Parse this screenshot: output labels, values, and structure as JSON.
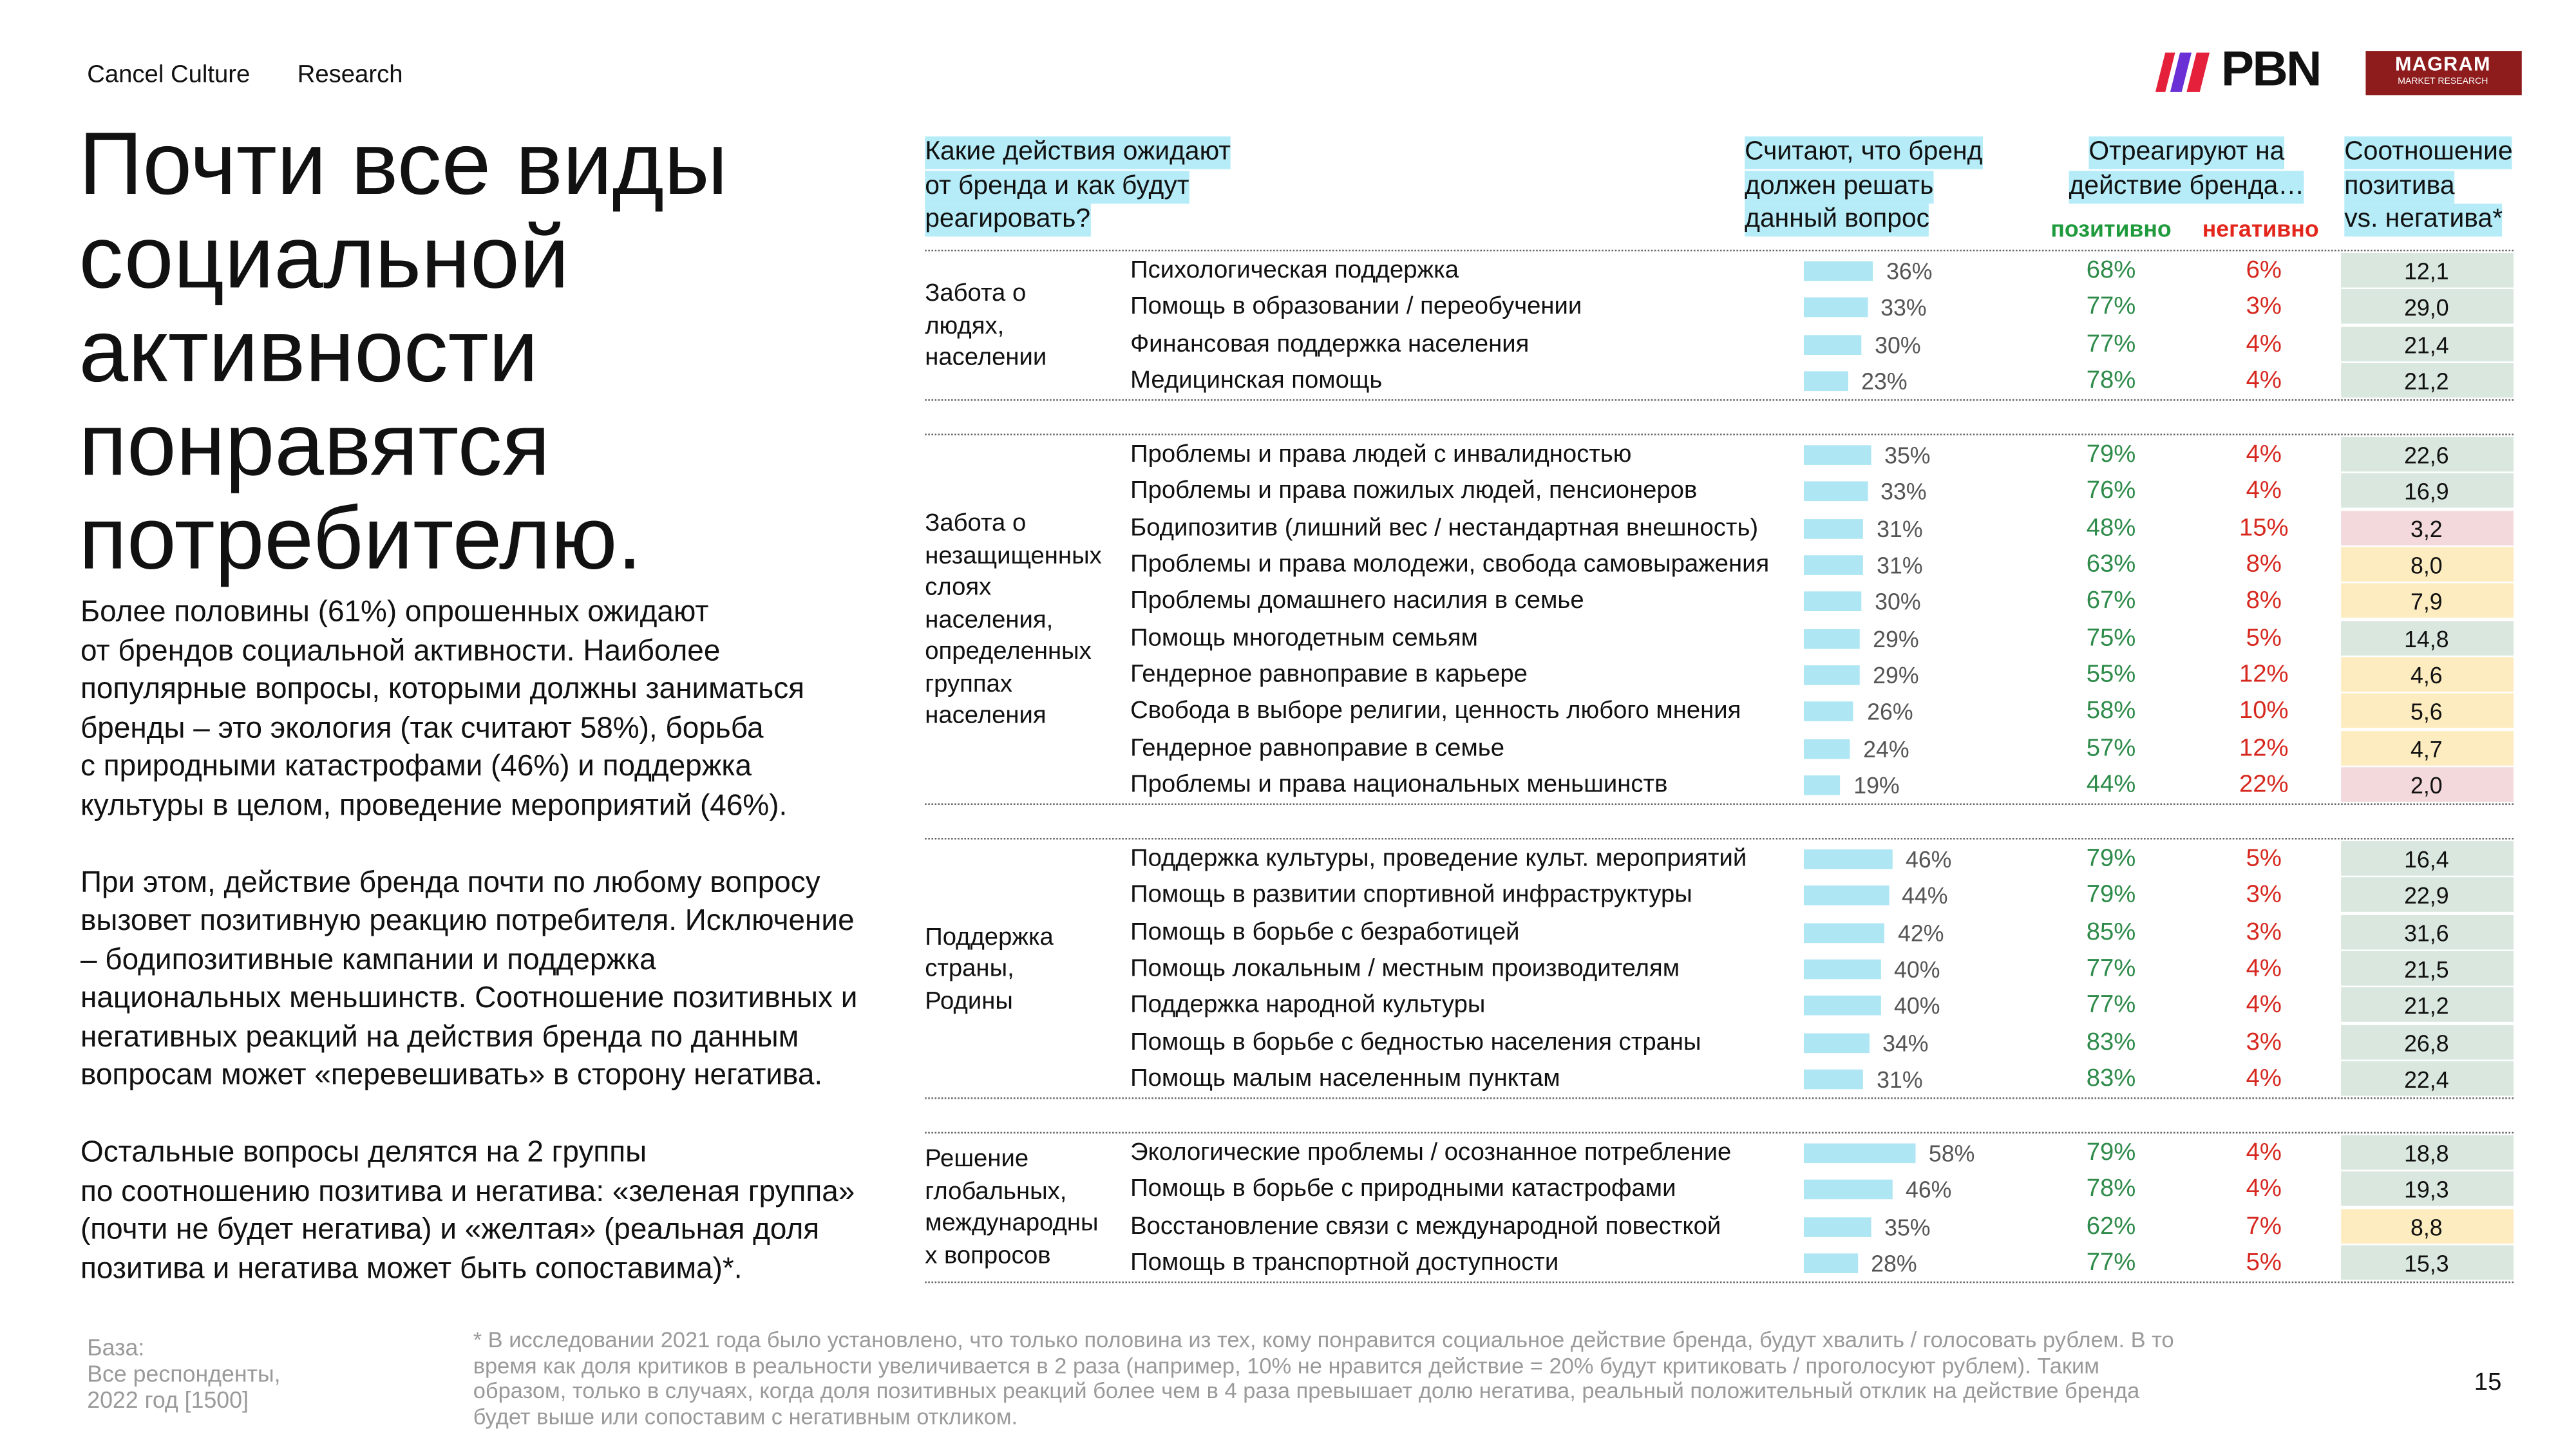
{
  "header": {
    "tags": [
      "Cancel Culture",
      "Research"
    ],
    "logo_pbn": "PBN",
    "logo_magram": "MAGRAM",
    "logo_magram_sub": "MARKET RESEARCH"
  },
  "title": [
    "Почти все виды",
    "социальной",
    "активности",
    "понравятся",
    "потребителю."
  ],
  "paragraphs": [
    [
      "Более половины (61%) опрошенных ожидают",
      "от брендов социальной активности. Наиболее",
      "популярные вопросы, которыми должны заниматься",
      "бренды – это экология (так считают 58%), борьба",
      "с природными катастрофами (46%) и поддержка",
      "культуры в целом, проведение мероприятий (46%)."
    ],
    [
      "При этом, действие бренда почти по любому вопросу",
      "вызовет позитивную реакцию потребителя. Исключение",
      "– бодипозитивные кампании и поддержка",
      "национальных меньшинств. Соотношение позитивных и",
      "негативных реакций на действия бренда по данным",
      "вопросам может «перевешивать» в сторону негатива."
    ],
    [
      "Остальные вопросы делятся на 2 группы",
      "по соотношению позитива и негатива: «зеленая группа»",
      "(почти не будет негатива) и «желтая» (реальная доля",
      "позитива и негатива может быть сопоставима)*."
    ]
  ],
  "table": {
    "headers": {
      "question": [
        "Какие действия ожидают",
        "от бренда и как будут",
        "реагировать?"
      ],
      "should": [
        "Считают, что бренд",
        "должен решать",
        "данный вопрос"
      ],
      "react": [
        "Отреагируют на",
        "действие бренда…"
      ],
      "positive": "позитивно",
      "negative": "негативно",
      "ratio": [
        "Соотношение",
        "позитива",
        "vs. негатива*"
      ]
    },
    "groups": [
      {
        "label": [
          "Забота о",
          "людях,",
          "населении"
        ],
        "rows": [
          {
            "issue": "Психологическая поддержка",
            "share": {
              "value": 36,
              "label": "36%"
            },
            "positive": "68%",
            "negative": "6%",
            "ratio": "12,1",
            "ratio_color": "#d9e7de"
          },
          {
            "issue": "Помощь в образовании / переобучении",
            "share": {
              "value": 33,
              "label": "33%"
            },
            "positive": "77%",
            "negative": "3%",
            "ratio": "29,0",
            "ratio_color": "#d9e7de"
          },
          {
            "issue": "Финансовая поддержка населения",
            "share": {
              "value": 30,
              "label": "30%"
            },
            "positive": "77%",
            "negative": "4%",
            "ratio": "21,4",
            "ratio_color": "#d9e7de"
          },
          {
            "issue": "Медицинская помощь",
            "share": {
              "value": 23,
              "label": "23%"
            },
            "positive": "78%",
            "negative": "4%",
            "ratio": "21,2",
            "ratio_color": "#d9e7de"
          }
        ]
      },
      {
        "label": [
          "Забота о",
          "незащищенных",
          "слоях",
          "населения,",
          "определенных",
          "группах",
          "населения"
        ],
        "rows": [
          {
            "issue": "Проблемы и права людей с инвалидностью",
            "share": {
              "value": 35,
              "label": "35%"
            },
            "positive": "79%",
            "negative": "4%",
            "ratio": "22,6",
            "ratio_color": "#d9e7de"
          },
          {
            "issue": "Проблемы и права пожилых людей, пенсионеров",
            "share": {
              "value": 33,
              "label": "33%"
            },
            "positive": "76%",
            "negative": "4%",
            "ratio": "16,9",
            "ratio_color": "#d9e7de"
          },
          {
            "issue": "Бодипозитив (лишний вес / нестандартная внешность)",
            "share": {
              "value": 31,
              "label": "31%"
            },
            "positive": "48%",
            "negative": "15%",
            "ratio": "3,2",
            "ratio_color": "#f3d9dc"
          },
          {
            "issue": "Проблемы и права молодежи, свобода самовыражения",
            "share": {
              "value": 31,
              "label": "31%"
            },
            "positive": "63%",
            "negative": "8%",
            "ratio": "8,0",
            "ratio_color": "#fcecbf"
          },
          {
            "issue": "Проблемы домашнего насилия в семье",
            "share": {
              "value": 30,
              "label": "30%"
            },
            "positive": "67%",
            "negative": "8%",
            "ratio": "7,9",
            "ratio_color": "#fcecbf"
          },
          {
            "issue": "Помощь многодетным семьям",
            "share": {
              "value": 29,
              "label": "29%"
            },
            "positive": "75%",
            "negative": "5%",
            "ratio": "14,8",
            "ratio_color": "#d9e7de"
          },
          {
            "issue": "Гендерное равноправие в карьере",
            "share": {
              "value": 29,
              "label": "29%"
            },
            "positive": "55%",
            "negative": "12%",
            "ratio": "4,6",
            "ratio_color": "#fcecbf"
          },
          {
            "issue": "Свобода в выборе религии, ценность любого мнения",
            "share": {
              "value": 26,
              "label": "26%"
            },
            "positive": "58%",
            "negative": "10%",
            "ratio": "5,6",
            "ratio_color": "#fcecbf"
          },
          {
            "issue": "Гендерное равноправие в семье",
            "share": {
              "value": 24,
              "label": "24%"
            },
            "positive": "57%",
            "negative": "12%",
            "ratio": "4,7",
            "ratio_color": "#fcecbf"
          },
          {
            "issue": "Проблемы и права национальных меньшинств",
            "share": {
              "value": 19,
              "label": "19%"
            },
            "positive": "44%",
            "negative": "22%",
            "ratio": "2,0",
            "ratio_color": "#f3d9dc"
          }
        ]
      },
      {
        "label": [
          "Поддержка",
          "страны,",
          "Родины"
        ],
        "rows": [
          {
            "issue": "Поддержка культуры, проведение культ. мероприятий",
            "share": {
              "value": 46,
              "label": "46%"
            },
            "positive": "79%",
            "negative": "5%",
            "ratio": "16,4",
            "ratio_color": "#d9e7de"
          },
          {
            "issue": "Помощь в развитии спортивной инфраструктуры",
            "share": {
              "value": 44,
              "label": "44%"
            },
            "positive": "79%",
            "negative": "3%",
            "ratio": "22,9",
            "ratio_color": "#d9e7de"
          },
          {
            "issue": "Помощь в борьбе с безработицей",
            "share": {
              "value": 42,
              "label": "42%"
            },
            "positive": "85%",
            "negative": "3%",
            "ratio": "31,6",
            "ratio_color": "#d9e7de"
          },
          {
            "issue": "Помощь локальным / местным производителям",
            "share": {
              "value": 40,
              "label": "40%"
            },
            "positive": "77%",
            "negative": "4%",
            "ratio": "21,5",
            "ratio_color": "#d9e7de"
          },
          {
            "issue": "Поддержка народной культуры",
            "share": {
              "value": 40,
              "label": "40%"
            },
            "positive": "77%",
            "negative": "4%",
            "ratio": "21,2",
            "ratio_color": "#d9e7de"
          },
          {
            "issue": "Помощь в борьбе с бедностью населения страны",
            "share": {
              "value": 34,
              "label": "34%"
            },
            "positive": "83%",
            "negative": "3%",
            "ratio": "26,8",
            "ratio_color": "#d9e7de"
          },
          {
            "issue": "Помощь малым населенным пунктам",
            "share": {
              "value": 31,
              "label": "31%"
            },
            "positive": "83%",
            "negative": "4%",
            "ratio": "22,4",
            "ratio_color": "#d9e7de"
          }
        ]
      },
      {
        "label": [
          "Решение",
          "глобальных,",
          "международны",
          "х вопросов"
        ],
        "rows": [
          {
            "issue": "Экологические проблемы / осознанное потребление",
            "share": {
              "value": 58,
              "label": "58%"
            },
            "positive": "79%",
            "negative": "4%",
            "ratio": "18,8",
            "ratio_color": "#d9e7de"
          },
          {
            "issue": "Помощь в борьбе с природными катастрофами",
            "share": {
              "value": 46,
              "label": "46%"
            },
            "positive": "78%",
            "negative": "4%",
            "ratio": "19,3",
            "ratio_color": "#d9e7de"
          },
          {
            "issue": "Восстановление связи с международной повесткой",
            "share": {
              "value": 35,
              "label": "35%"
            },
            "positive": "62%",
            "negative": "7%",
            "ratio": "8,8",
            "ratio_color": "#fcecbf"
          },
          {
            "issue": "Помощь в транспортной доступности",
            "share": {
              "value": 28,
              "label": "28%"
            },
            "positive": "77%",
            "negative": "5%",
            "ratio": "15,3",
            "ratio_color": "#d9e7de"
          }
        ]
      }
    ]
  },
  "footer": {
    "base": [
      "База:",
      "Все респонденты,",
      "2022 год [1500]"
    ],
    "note": [
      "* В исследовании 2021 года было установлено, что только половина из тех, кому понравится социальное действие бренда, будут хвалить / голосовать рублем. В то",
      "время как доля критиков в реальности увеличивается в 2 раза (например, 10% не нравится действие = 20% будут критиковать / проголосуют рублем). Таким",
      "образом, только в случаях, когда доля позитивных реакций более чем в 4 раза превышает долю негатива, реальный положительный отклик на действие бренда",
      "будет выше или сопоставим с негативным откликом."
    ],
    "page": "15"
  }
}
